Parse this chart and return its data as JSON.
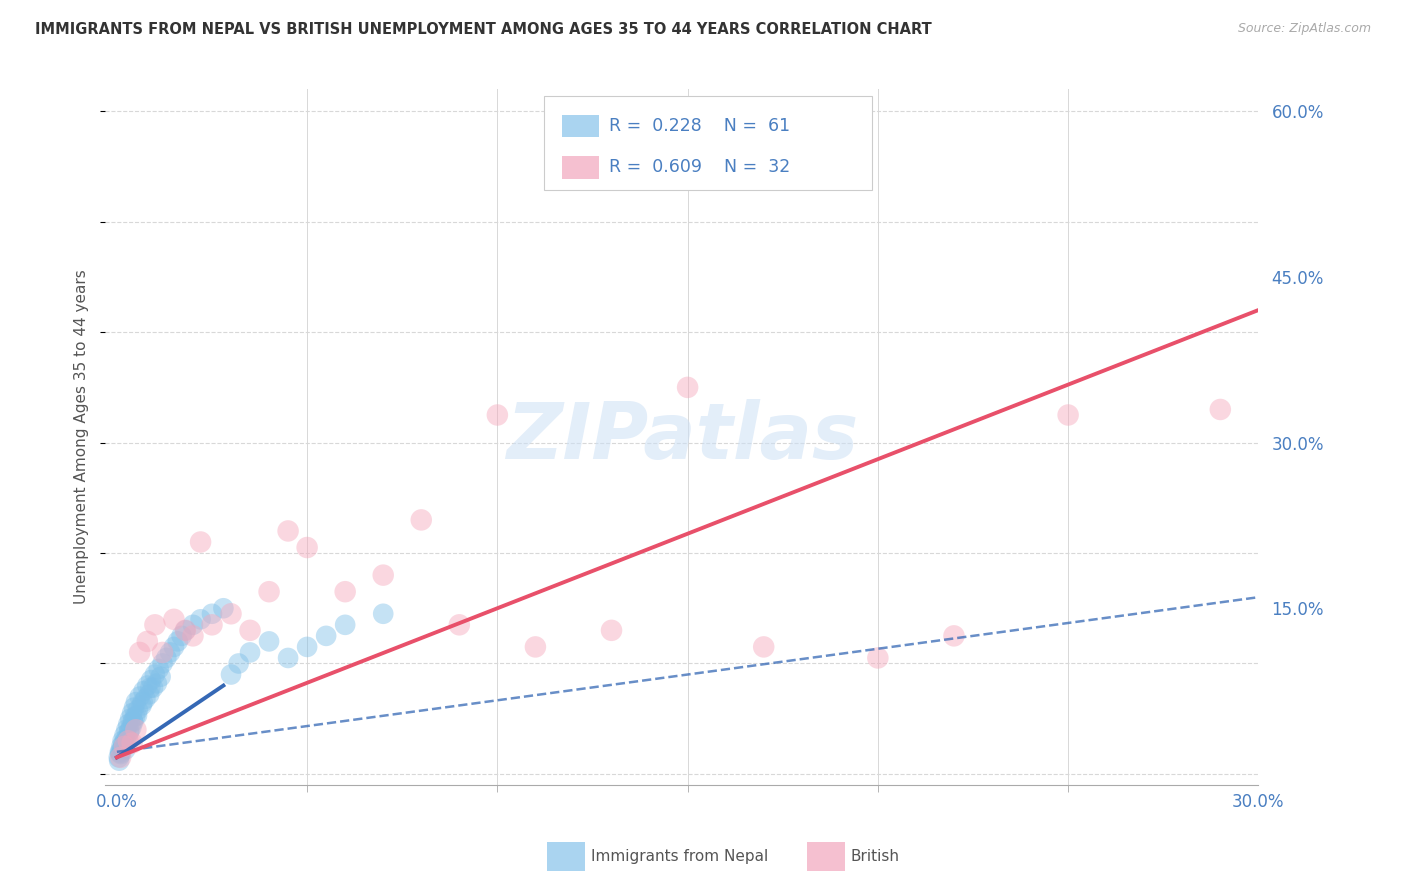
{
  "title": "IMMIGRANTS FROM NEPAL VS BRITISH UNEMPLOYMENT AMONG AGES 35 TO 44 YEARS CORRELATION CHART",
  "source": "Source: ZipAtlas.com",
  "ylabel": "Unemployment Among Ages 35 to 44 years",
  "x_tick_labels_outer": [
    "0.0%",
    "30.0%"
  ],
  "x_tick_values_outer": [
    0,
    30
  ],
  "x_minor_tick_values": [
    5,
    10,
    15,
    20,
    25
  ],
  "y_tick_labels_right": [
    "15.0%",
    "30.0%",
    "45.0%",
    "60.0%"
  ],
  "y_tick_values_right": [
    15,
    30,
    45,
    60
  ],
  "xlim": [
    -0.3,
    30
  ],
  "ylim": [
    -1,
    62
  ],
  "nepal_R": 0.228,
  "nepal_N": 61,
  "british_R": 0.609,
  "british_N": 32,
  "nepal_color": "#7fbfe8",
  "british_color": "#f5a8bc",
  "nepal_line_color": "#3568b5",
  "british_line_color": "#e8506a",
  "nepal_scatter_x": [
    0.05,
    0.08,
    0.1,
    0.12,
    0.15,
    0.18,
    0.2,
    0.22,
    0.25,
    0.28,
    0.3,
    0.32,
    0.35,
    0.38,
    0.4,
    0.42,
    0.45,
    0.48,
    0.5,
    0.55,
    0.6,
    0.65,
    0.7,
    0.75,
    0.8,
    0.85,
    0.9,
    0.95,
    1.0,
    1.05,
    1.1,
    1.15,
    1.2,
    1.3,
    1.4,
    1.5,
    1.6,
    1.7,
    1.8,
    2.0,
    2.2,
    2.5,
    2.8,
    3.0,
    3.2,
    3.5,
    4.0,
    4.5,
    5.0,
    5.5,
    6.0,
    7.0,
    0.06,
    0.09,
    0.14,
    0.23,
    0.33,
    0.43,
    0.53,
    0.68,
    0.88
  ],
  "nepal_scatter_y": [
    1.5,
    2.0,
    1.8,
    2.5,
    3.0,
    2.8,
    3.5,
    2.2,
    4.0,
    3.2,
    4.5,
    3.8,
    5.0,
    4.2,
    5.5,
    4.8,
    6.0,
    5.2,
    6.5,
    5.8,
    7.0,
    6.2,
    7.5,
    6.8,
    8.0,
    7.2,
    8.5,
    7.8,
    9.0,
    8.2,
    9.5,
    8.8,
    10.0,
    10.5,
    11.0,
    11.5,
    12.0,
    12.5,
    13.0,
    13.5,
    14.0,
    14.5,
    15.0,
    9.0,
    10.0,
    11.0,
    12.0,
    10.5,
    11.5,
    12.5,
    13.5,
    14.5,
    1.2,
    1.9,
    2.3,
    3.1,
    3.9,
    4.7,
    5.3,
    6.5,
    7.8
  ],
  "british_scatter_x": [
    0.1,
    0.2,
    0.3,
    0.4,
    0.5,
    0.6,
    0.8,
    1.0,
    1.2,
    1.5,
    1.8,
    2.0,
    2.2,
    2.5,
    3.0,
    3.5,
    4.0,
    4.5,
    5.0,
    6.0,
    7.0,
    8.0,
    9.0,
    10.0,
    11.0,
    13.0,
    15.0,
    17.0,
    20.0,
    22.0,
    25.0,
    29.0
  ],
  "british_scatter_y": [
    1.5,
    2.5,
    3.0,
    2.8,
    4.0,
    11.0,
    12.0,
    13.5,
    11.0,
    14.0,
    13.0,
    12.5,
    21.0,
    13.5,
    14.5,
    13.0,
    16.5,
    22.0,
    20.5,
    16.5,
    18.0,
    23.0,
    13.5,
    32.5,
    11.5,
    13.0,
    35.0,
    11.5,
    10.5,
    12.5,
    32.5,
    33.0
  ],
  "nepal_solid_line_x": [
    0,
    2.8
  ],
  "nepal_solid_line_y": [
    1.5,
    8.0
  ],
  "nepal_dash_line_x": [
    0,
    30
  ],
  "nepal_dash_line_y": [
    2.0,
    16.0
  ],
  "british_solid_line_x": [
    0,
    30
  ],
  "british_solid_line_y": [
    1.5,
    42.0
  ],
  "watermark": "ZIPatlas",
  "background_color": "#ffffff",
  "grid_color": "#d8d8d8",
  "legend_nepal_color": "#aad4f0",
  "legend_british_color": "#f5c0d0",
  "legend_text_color": "#4a7fc1",
  "legend_label_color": "#333333"
}
